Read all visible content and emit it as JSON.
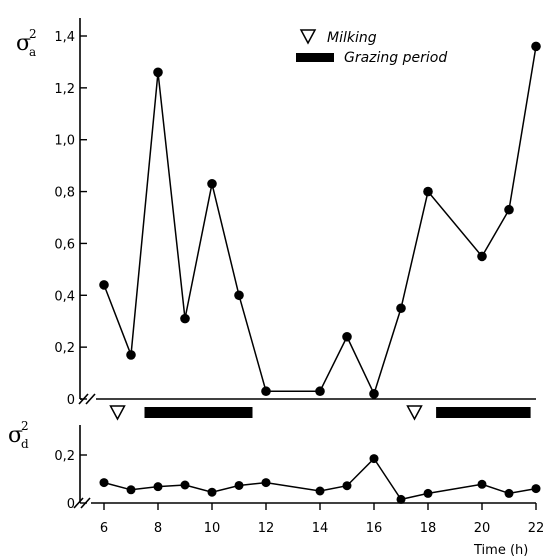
{
  "chart_data": [
    {
      "type": "line",
      "ylabel_symbol": "σ",
      "ylabel_subscript": "a",
      "ylabel_superscript": "2",
      "ylim": [
        0,
        1.4
      ],
      "yticks": [
        0,
        0.2,
        0.4,
        0.6,
        0.8,
        1.0,
        1.2,
        1.4
      ],
      "ytick_labels": [
        "0",
        "0,2",
        "0,4",
        "0,6",
        "0,8",
        "1,0",
        "1,2",
        "1,4"
      ],
      "series": [
        {
          "x": [
            6,
            7,
            8,
            9,
            10,
            11,
            12,
            14,
            15,
            16,
            17,
            18,
            20,
            21,
            22
          ],
          "values": [
            0.44,
            0.17,
            1.26,
            0.31,
            0.83,
            0.4,
            0.03,
            0.03,
            0.24,
            0.02,
            0.35,
            0.8,
            0.55,
            0.73,
            1.36
          ]
        }
      ],
      "legend": {
        "placement": "top-right",
        "milking_label": "Milking",
        "grazing_label": "Grazing period"
      },
      "annotations": {
        "milking_times": [
          6.5,
          17.5
        ],
        "grazing_periods": [
          [
            7.5,
            11.5
          ],
          [
            18.3,
            21.8
          ]
        ]
      }
    },
    {
      "type": "line",
      "ylabel_symbol": "σ",
      "ylabel_subscript": "d",
      "ylabel_superscript": "2",
      "ylim": [
        0,
        0.25
      ],
      "yticks": [
        0,
        0.2
      ],
      "ytick_labels": [
        "0",
        "0,2"
      ],
      "xlabel": "Time (h)",
      "xticks": [
        6,
        8,
        10,
        12,
        14,
        16,
        18,
        20,
        22
      ],
      "xtick_labels": [
        "6",
        "8",
        "10",
        "12",
        "14",
        "16",
        "18",
        "20",
        "22"
      ],
      "series": [
        {
          "x": [
            6,
            7,
            8,
            9,
            10,
            11,
            12,
            14,
            15,
            16,
            17,
            18,
            20,
            21,
            22
          ],
          "values": [
            0.085,
            0.055,
            0.068,
            0.075,
            0.045,
            0.073,
            0.085,
            0.05,
            0.072,
            0.185,
            0.015,
            0.04,
            0.078,
            0.04,
            0.06
          ]
        }
      ]
    }
  ]
}
